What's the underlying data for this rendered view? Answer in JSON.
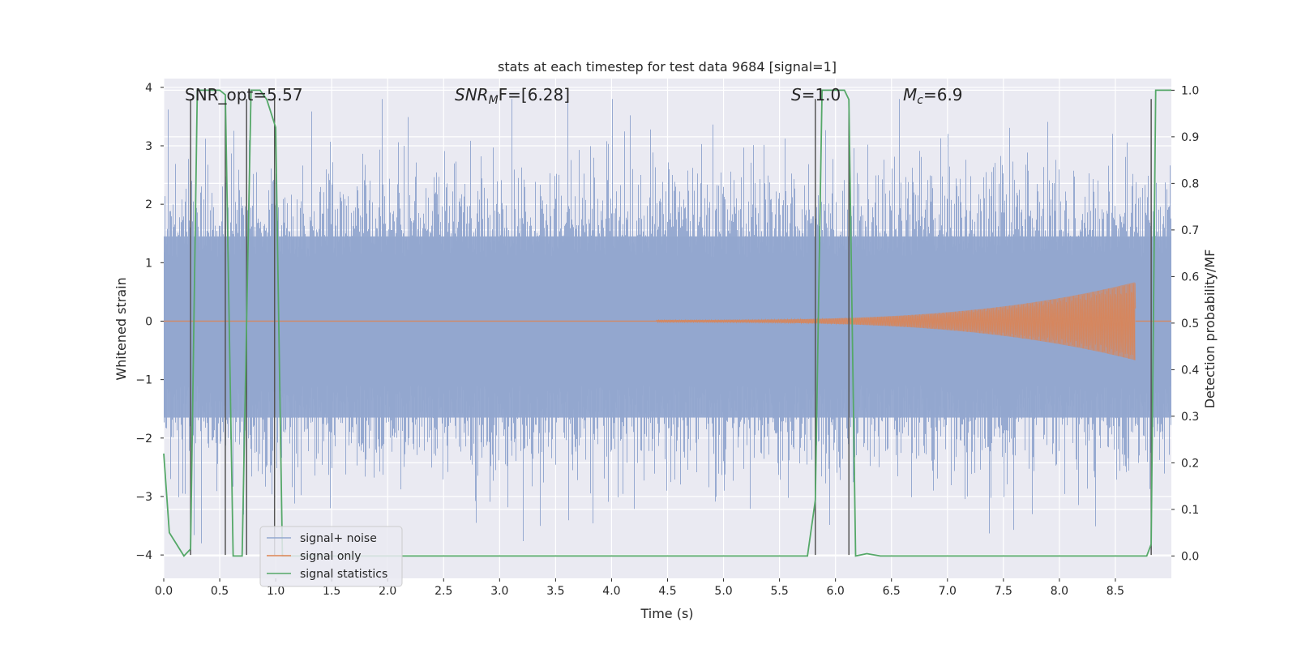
{
  "chart_data": {
    "type": "line",
    "title": "stats at each timestep for test data 9684 [signal=1]",
    "xlabel": "Time (s)",
    "ylabel": "Whitened strain",
    "y2label": "Detection probability/MF",
    "xlim": [
      0.0,
      9.0
    ],
    "ylim": [
      -4.4,
      4.15
    ],
    "y2lim": [
      -0.048,
      1.025
    ],
    "x_ticks": [
      0.0,
      0.5,
      1.0,
      1.5,
      2.0,
      2.5,
      3.0,
      3.5,
      4.0,
      4.5,
      5.0,
      5.5,
      6.0,
      6.5,
      7.0,
      7.5,
      8.0,
      8.5
    ],
    "x_tick_labels": [
      "0.0",
      "0.5",
      "1.0",
      "1.5",
      "2.0",
      "2.5",
      "3.0",
      "3.5",
      "4.0",
      "4.5",
      "5.0",
      "5.5",
      "6.0",
      "6.5",
      "7.0",
      "7.5",
      "8.0",
      "8.5"
    ],
    "y_ticks": [
      -4,
      -3,
      -2,
      -1,
      0,
      1,
      2,
      3,
      4
    ],
    "y_tick_labels": [
      "−4",
      "−3",
      "−2",
      "−1",
      "0",
      "1",
      "2",
      "3",
      "4"
    ],
    "y2_ticks": [
      0.0,
      0.1,
      0.2,
      0.3,
      0.4,
      0.5,
      0.6,
      0.7,
      0.8,
      0.9,
      1.0
    ],
    "y2_tick_labels": [
      "0.0",
      "0.1",
      "0.2",
      "0.3",
      "0.4",
      "0.5",
      "0.6",
      "0.7",
      "0.8",
      "0.9",
      "1.0"
    ],
    "grid": true,
    "legend_position": "lower-left",
    "annotations": {
      "snr_opt": "SNR_opt=5.57",
      "snr_mf_base": "SNR",
      "snr_mf_sub": "M",
      "snr_mf_rest": "F=[6.28]",
      "s_italic": "S",
      "s_rest": "=1.0",
      "mc_base": "M",
      "mc_sub": "c",
      "mc_rest": "=6.9"
    },
    "series": [
      {
        "name": "signal+ noise",
        "color": "#92a7cf",
        "style": "noise",
        "duration": 9.0,
        "envelope_sigma": 1.0,
        "peak_max": 3.8
      },
      {
        "name": "signal only",
        "color": "#dd8452",
        "style": "chirp",
        "start": 4.4,
        "end": 8.68,
        "peak_amplitude": 0.65
      },
      {
        "name": "signal statistics",
        "color": "#55a868",
        "axis": "right",
        "x": [
          0.0,
          0.05,
          0.18,
          0.24,
          0.3,
          0.5,
          0.55,
          0.62,
          0.7,
          0.78,
          0.86,
          0.92,
          1.0,
          1.06,
          1.15,
          5.75,
          5.82,
          5.88,
          6.08,
          6.12,
          6.18,
          6.28,
          6.4,
          8.78,
          8.82,
          8.86,
          9.0
        ],
        "y": [
          0.22,
          0.05,
          0.0,
          0.015,
          1.0,
          1.0,
          0.99,
          0.0,
          0.0,
          1.0,
          1.0,
          0.98,
          0.92,
          0.0,
          0.0,
          0.0,
          0.12,
          1.0,
          1.0,
          0.98,
          0.0,
          0.005,
          0.0,
          0.0,
          0.025,
          1.0,
          1.0
        ]
      }
    ],
    "vertical_markers": {
      "color": "#555555",
      "x": [
        0.24,
        0.55,
        0.74,
        0.99,
        5.82,
        6.12,
        8.82
      ],
      "y": [
        [
          -4.0,
          3.8
        ],
        [
          -4.0,
          3.8
        ],
        [
          -4.0,
          3.8
        ],
        [
          -4.0,
          3.8
        ],
        [
          -4.0,
          3.8
        ],
        [
          -4.0,
          3.8
        ],
        [
          -4.0,
          3.8
        ]
      ]
    }
  }
}
